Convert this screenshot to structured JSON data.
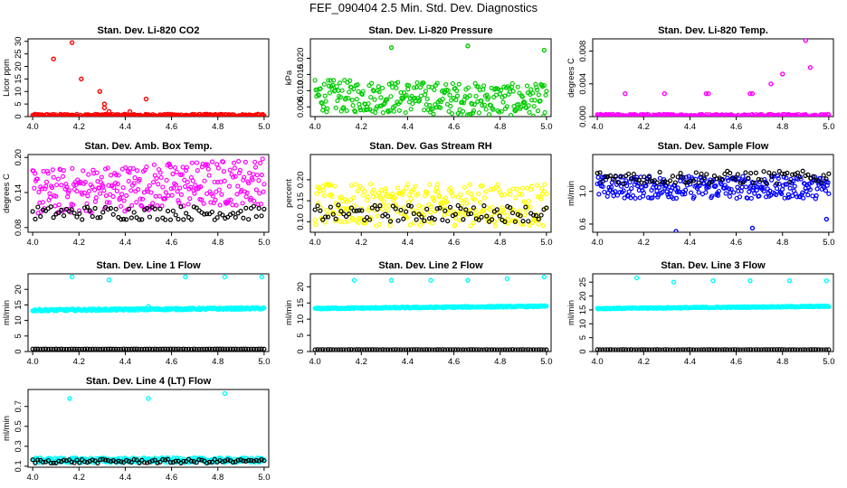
{
  "page_title": "FEF_090404  2.5 Min. Std. Dev. Diagnostics",
  "colors": {
    "red": "#ff0000",
    "green": "#00cc00",
    "magenta": "#ff00ff",
    "yellow": "#ffff00",
    "blue": "#0000ff",
    "cyan": "#00ffff",
    "black": "#000000"
  },
  "chart_data": [
    {
      "type": "scatter",
      "title": "Stan. Dev. Li-820 CO2",
      "xlabel": "",
      "ylabel": "Licor ppm",
      "xlim": [
        3.98,
        5.02
      ],
      "ylim": [
        0,
        31
      ],
      "xticks": [
        "4.0",
        "4.2",
        "4.4",
        "4.6",
        "4.8",
        "5.0"
      ],
      "yticks": [
        "0",
        "5",
        "10",
        "15",
        "20",
        "25",
        "30"
      ],
      "color": "#ff0000",
      "series": [
        {
          "base": 0.4,
          "spread": 0.6
        },
        {
          "points": [
            [
              4.09,
              23
            ],
            [
              4.17,
              29.5
            ],
            [
              4.21,
              15
            ],
            [
              4.29,
              10
            ],
            [
              4.31,
              5
            ],
            [
              4.31,
              3.5
            ],
            [
              4.33,
              2
            ],
            [
              4.42,
              2
            ],
            [
              4.49,
              7
            ]
          ]
        }
      ]
    },
    {
      "type": "scatter",
      "title": "Stan. Dev. Li-820 Pressure",
      "xlabel": "",
      "ylabel": "kPa",
      "xlim": [
        3.98,
        5.02
      ],
      "ylim": [
        0.002,
        0.026
      ],
      "xticks": [
        "4.0",
        "4.2",
        "4.4",
        "4.6",
        "4.8",
        "5.0"
      ],
      "yticks": [
        "0.005",
        "0.010",
        "0.015",
        "0.020"
      ],
      "color": "#00cc00",
      "series": [
        {
          "base": 0.0085,
          "spread": 0.005,
          "trend": -0.0015
        },
        {
          "points": [
            [
              4.33,
              0.0233
            ],
            [
              4.66,
              0.0238
            ],
            [
              4.99,
              0.0225
            ]
          ]
        }
      ]
    },
    {
      "type": "scatter",
      "title": "Stan. Dev. Li-820 Temp.",
      "xlabel": "",
      "ylabel": "degrees C",
      "xlim": [
        3.98,
        5.02
      ],
      "ylim": [
        0,
        0.0095
      ],
      "xticks": [
        "4.0",
        "4.2",
        "4.4",
        "4.6",
        "4.8",
        "5.0"
      ],
      "yticks": [
        "0.000",
        "0.004",
        "0.008"
      ],
      "color": "#ff00ff",
      "series": [
        {
          "base": 0.0001,
          "spread": 0.0002
        },
        {
          "points": [
            [
              4.12,
              0.0028
            ],
            [
              4.29,
              0.0028
            ],
            [
              4.47,
              0.0028
            ],
            [
              4.48,
              0.0028
            ],
            [
              4.66,
              0.0028
            ],
            [
              4.67,
              0.0028
            ],
            [
              4.75,
              0.004
            ],
            [
              4.8,
              0.0052
            ],
            [
              4.9,
              0.0093
            ],
            [
              4.92,
              0.006
            ]
          ]
        }
      ]
    },
    {
      "type": "scatter",
      "title": "Stan. Dev. Amb. Box Temp.",
      "xlabel": "",
      "ylabel": "degrees C",
      "xlim": [
        3.98,
        5.02
      ],
      "ylim": [
        0.072,
        0.205
      ],
      "xticks": [
        "4.0",
        "4.2",
        "4.4",
        "4.6",
        "4.8",
        "5.0"
      ],
      "yticks": [
        "0.08",
        "0.14",
        "0.20"
      ],
      "color": "#ff00ff",
      "series": [
        {
          "base": 0.14,
          "spread": 0.04,
          "trend": 0.02
        },
        {
          "base": 0.105,
          "spread": 0.012
        }
      ]
    },
    {
      "type": "scatter",
      "title": "Stan. Dev. Gas Stream RH",
      "xlabel": "",
      "ylabel": "percent",
      "xlim": [
        3.98,
        5.02
      ],
      "ylim": [
        0.075,
        0.26
      ],
      "xticks": [
        "4.0",
        "4.2",
        "4.4",
        "4.6",
        "4.8",
        "5.0"
      ],
      "yticks": [
        "0.10",
        "0.15",
        "0.20"
      ],
      "color": "#ffff00",
      "series": [
        {
          "base": 0.14,
          "spread": 0.05
        },
        {
          "base": 0.12,
          "spread": 0.02
        }
      ]
    },
    {
      "type": "scatter",
      "title": "Stan. Dev. Sample Flow",
      "xlabel": "",
      "ylabel": "ml/min",
      "xlim": [
        3.98,
        5.02
      ],
      "ylim": [
        0.5,
        1.45
      ],
      "xticks": [
        "4.0",
        "4.2",
        "4.4",
        "4.6",
        "4.8",
        "5.0"
      ],
      "yticks": [
        "0.6",
        "1.0"
      ],
      "color": "#0000ff",
      "series": [
        {
          "base": 1.05,
          "spread": 0.14
        },
        {
          "base": 1.17,
          "spread": 0.08
        },
        {
          "points": [
            [
              4.34,
              0.51
            ],
            [
              4.67,
              0.55
            ],
            [
              4.99,
              0.66
            ]
          ]
        }
      ]
    },
    {
      "type": "scatter",
      "title": "Stan. Dev. Line 1 Flow",
      "xlabel": "",
      "ylabel": "ml/min",
      "xlim": [
        3.98,
        5.02
      ],
      "ylim": [
        0,
        25
      ],
      "xticks": [
        "4.0",
        "4.2",
        "4.4",
        "4.6",
        "4.8",
        "5.0"
      ],
      "yticks": [
        "0",
        "5",
        "10",
        "15",
        "20"
      ],
      "color": "#00ffff",
      "series": [
        {
          "base": 13.3,
          "spread": 0.3,
          "trend": 0.6
        },
        {
          "base": 0.8,
          "spread": 0.05
        },
        {
          "points": [
            [
              4.17,
              24
            ],
            [
              4.33,
              23
            ],
            [
              4.5,
              14.5
            ],
            [
              4.66,
              24
            ],
            [
              4.83,
              24
            ],
            [
              4.99,
              24
            ]
          ]
        }
      ]
    },
    {
      "type": "scatter",
      "title": "Stan. Dev. Line 2 Flow",
      "xlabel": "",
      "ylabel": "ml/min",
      "xlim": [
        3.98,
        5.02
      ],
      "ylim": [
        0,
        24
      ],
      "xticks": [
        "4.0",
        "4.2",
        "4.4",
        "4.6",
        "4.8",
        "5.0"
      ],
      "yticks": [
        "0",
        "5",
        "10",
        "15",
        "20"
      ],
      "color": "#00ffff",
      "series": [
        {
          "base": 13.3,
          "spread": 0.2,
          "trend": 0.7
        },
        {
          "base": 0.6,
          "spread": 0.05
        },
        {
          "points": [
            [
              4.17,
              22
            ],
            [
              4.33,
              22
            ],
            [
              4.5,
              22
            ],
            [
              4.66,
              22
            ],
            [
              4.83,
              22.5
            ],
            [
              4.99,
              23
            ]
          ]
        }
      ]
    },
    {
      "type": "scatter",
      "title": "Stan. Dev. Line 3 Flow",
      "xlabel": "",
      "ylabel": "ml/min",
      "xlim": [
        3.98,
        5.02
      ],
      "ylim": [
        0,
        28
      ],
      "xticks": [
        "4.0",
        "4.2",
        "4.4",
        "4.6",
        "4.8",
        "5.0"
      ],
      "yticks": [
        "0",
        "5",
        "10",
        "15",
        "20",
        "25"
      ],
      "color": "#00ffff",
      "series": [
        {
          "base": 15.5,
          "spread": 0.2,
          "trend": 0.8
        },
        {
          "base": 0.7,
          "spread": 0.05
        },
        {
          "points": [
            [
              4.17,
              26.5
            ],
            [
              4.33,
              25
            ],
            [
              4.5,
              25.5
            ],
            [
              4.66,
              25.5
            ],
            [
              4.83,
              25.5
            ],
            [
              4.99,
              25.5
            ]
          ]
        }
      ]
    },
    {
      "type": "scatter",
      "title": "Stan. Dev. Line 4 (LT) Flow",
      "xlabel": "",
      "ylabel": "ml/min",
      "xlim": [
        3.98,
        5.02
      ],
      "ylim": [
        0.09,
        0.87
      ],
      "xticks": [
        "4.0",
        "4.2",
        "4.4",
        "4.6",
        "4.8",
        "5.0"
      ],
      "yticks": [
        "0.1",
        "0.3",
        "0.5",
        "0.7"
      ],
      "color": "#00ffff",
      "series": [
        {
          "base": 0.16,
          "spread": 0.025
        },
        {
          "base": 0.15,
          "spread": 0.02
        },
        {
          "points": [
            [
              4.16,
              0.78
            ],
            [
              4.5,
              0.78
            ],
            [
              4.83,
              0.83
            ]
          ]
        }
      ]
    }
  ]
}
